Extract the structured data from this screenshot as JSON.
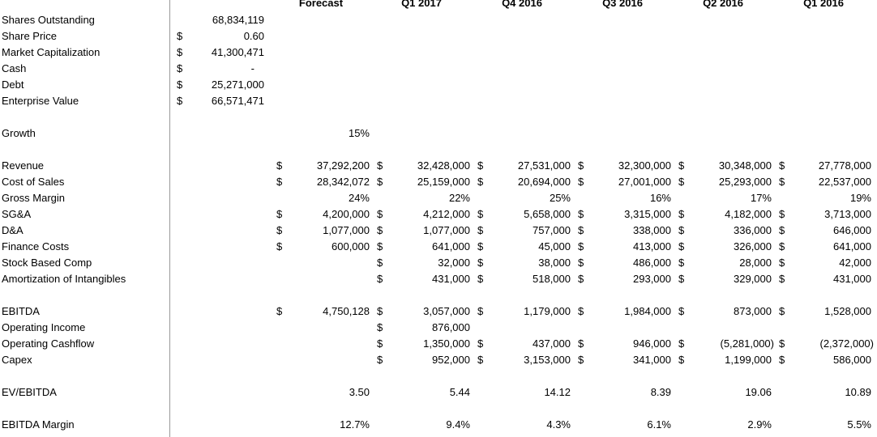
{
  "headers": [
    "Forecast",
    "Q1 2017",
    "Q4 2016",
    "Q3 2016",
    "Q2 2016",
    "Q1 2016"
  ],
  "summary": [
    {
      "label": "Shares Outstanding",
      "currency": "",
      "value": "68,834,119"
    },
    {
      "label": "Share Price",
      "currency": "$",
      "value": "0.60"
    },
    {
      "label": "Market Capitalization",
      "currency": "$",
      "value": "41,300,471"
    },
    {
      "label": "Cash",
      "currency": "$",
      "value": "-"
    },
    {
      "label": "Debt",
      "currency": "$",
      "value": "25,271,000"
    },
    {
      "label": "Enterprise Value",
      "currency": "$",
      "value": "66,571,471"
    }
  ],
  "growth": {
    "label": "Growth",
    "value": "15%"
  },
  "rows": [
    {
      "label": "Revenue",
      "cells": [
        [
          "$",
          "37,292,200"
        ],
        [
          "$",
          "32,428,000"
        ],
        [
          "$",
          "27,531,000"
        ],
        [
          "$",
          "32,300,000"
        ],
        [
          "$",
          "30,348,000"
        ],
        [
          "$",
          "27,778,000"
        ]
      ]
    },
    {
      "label": "Cost of Sales",
      "cells": [
        [
          "$",
          "28,342,072"
        ],
        [
          "$",
          "25,159,000"
        ],
        [
          "$",
          "20,694,000"
        ],
        [
          "$",
          "27,001,000"
        ],
        [
          "$",
          "25,293,000"
        ],
        [
          "$",
          "22,537,000"
        ]
      ]
    },
    {
      "label": "Gross Margin",
      "cells": [
        [
          "",
          "24%"
        ],
        [
          "",
          "22%"
        ],
        [
          "",
          "25%"
        ],
        [
          "",
          "16%"
        ],
        [
          "",
          "17%"
        ],
        [
          "",
          "19%"
        ]
      ]
    },
    {
      "label": "SG&A",
      "cells": [
        [
          "$",
          "4,200,000"
        ],
        [
          "$",
          "4,212,000"
        ],
        [
          "$",
          "5,658,000"
        ],
        [
          "$",
          "3,315,000"
        ],
        [
          "$",
          "4,182,000"
        ],
        [
          "$",
          "3,713,000"
        ]
      ]
    },
    {
      "label": "D&A",
      "cells": [
        [
          "$",
          "1,077,000"
        ],
        [
          "$",
          "1,077,000"
        ],
        [
          "$",
          "757,000"
        ],
        [
          "$",
          "338,000"
        ],
        [
          "$",
          "336,000"
        ],
        [
          "$",
          "646,000"
        ]
      ]
    },
    {
      "label": "Finance Costs",
      "cells": [
        [
          "$",
          "600,000"
        ],
        [
          "$",
          "641,000"
        ],
        [
          "$",
          "45,000"
        ],
        [
          "$",
          "413,000"
        ],
        [
          "$",
          "326,000"
        ],
        [
          "$",
          "641,000"
        ]
      ]
    },
    {
      "label": "Stock Based Comp",
      "cells": [
        [
          "",
          ""
        ],
        [
          "$",
          "32,000"
        ],
        [
          "$",
          "38,000"
        ],
        [
          "$",
          "486,000"
        ],
        [
          "$",
          "28,000"
        ],
        [
          "$",
          "42,000"
        ]
      ]
    },
    {
      "label": "Amortization of Intangibles",
      "cells": [
        [
          "",
          ""
        ],
        [
          "$",
          "431,000"
        ],
        [
          "$",
          "518,000"
        ],
        [
          "$",
          "293,000"
        ],
        [
          "$",
          "329,000"
        ],
        [
          "$",
          "431,000"
        ]
      ]
    }
  ],
  "rows2": [
    {
      "label": "EBITDA",
      "cells": [
        [
          "$",
          "4,750,128"
        ],
        [
          "$",
          "3,057,000"
        ],
        [
          "$",
          "1,179,000"
        ],
        [
          "$",
          "1,984,000"
        ],
        [
          "$",
          "873,000"
        ],
        [
          "$",
          "1,528,000"
        ]
      ]
    },
    {
      "label": "Operating Income",
      "cells": [
        [
          "",
          ""
        ],
        [
          "$",
          "876,000"
        ],
        [
          "",
          ""
        ],
        [
          "",
          ""
        ],
        [
          "",
          ""
        ],
        [
          "",
          ""
        ]
      ]
    },
    {
      "label": "Operating Cashflow",
      "cells": [
        [
          "",
          ""
        ],
        [
          "$",
          "1,350,000"
        ],
        [
          "$",
          "437,000"
        ],
        [
          "$",
          "946,000"
        ],
        [
          "$",
          "(5,281,000)"
        ],
        [
          "$",
          "(2,372,000)"
        ]
      ]
    },
    {
      "label": "Capex",
      "cells": [
        [
          "",
          ""
        ],
        [
          "$",
          "952,000"
        ],
        [
          "$",
          "3,153,000"
        ],
        [
          "$",
          "341,000"
        ],
        [
          "$",
          "1,199,000"
        ],
        [
          "$",
          "586,000"
        ]
      ]
    }
  ],
  "ratios": [
    {
      "label": "EV/EBITDA",
      "values": [
        "3.50",
        "5.44",
        "14.12",
        "8.39",
        "19.06",
        "10.89"
      ]
    },
    {
      "label": "EBITDA Margin",
      "values": [
        "12.7%",
        "9.4%",
        "4.3%",
        "6.1%",
        "2.9%",
        "5.5%"
      ]
    }
  ]
}
